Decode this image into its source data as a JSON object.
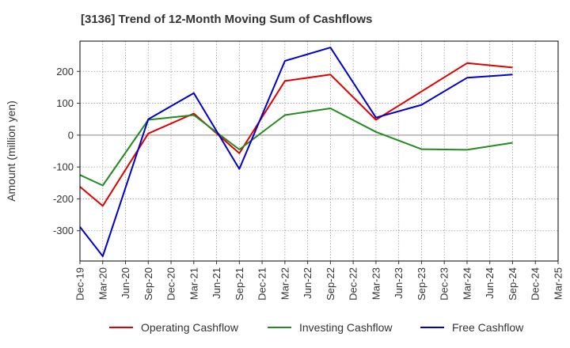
{
  "chart_data": {
    "type": "line",
    "title": "[3136]  Trend of 12-Month Moving Sum of Cashflows",
    "xlabel": "",
    "ylabel": "Amount (million yen)",
    "categories": [
      "Dec-19",
      "Mar-20",
      "Jun-20",
      "Sep-20",
      "Dec-20",
      "Mar-21",
      "Jun-21",
      "Sep-21",
      "Dec-21",
      "Mar-22",
      "Jun-22",
      "Sep-22",
      "Dec-22",
      "Mar-23",
      "Jun-23",
      "Sep-23",
      "Dec-23",
      "Mar-24",
      "Jun-24",
      "Sep-24",
      "Dec-24",
      "Mar-25"
    ],
    "ylim": [
      -395,
      295
    ],
    "yticks": [
      -300,
      -200,
      -100,
      0,
      100,
      200
    ],
    "ytick_labels": [
      "-300",
      "-200",
      "-100",
      "0",
      "100",
      "200"
    ],
    "grid": true,
    "legend_position": "bottom",
    "series": [
      {
        "name": "Operating Cashflow",
        "color": "#e00000",
        "values": [
          -162,
          -222,
          null,
          5,
          null,
          68,
          null,
          -57,
          null,
          170,
          null,
          190,
          null,
          48,
          null,
          null,
          null,
          226,
          null,
          212,
          null,
          null
        ]
      },
      {
        "name": "Investing Cashflow",
        "color": "#228b22",
        "values": [
          -125,
          -158,
          null,
          48,
          null,
          63,
          null,
          -45,
          null,
          63,
          null,
          84,
          null,
          10,
          null,
          -44,
          null,
          -46,
          null,
          -24,
          null,
          null
        ]
      },
      {
        "name": "Free Cashflow",
        "color": "#0000cc",
        "values": [
          -288,
          -380,
          null,
          50,
          null,
          132,
          null,
          -106,
          null,
          233,
          null,
          275,
          null,
          55,
          null,
          95,
          null,
          180,
          null,
          190,
          null,
          null
        ]
      }
    ]
  }
}
